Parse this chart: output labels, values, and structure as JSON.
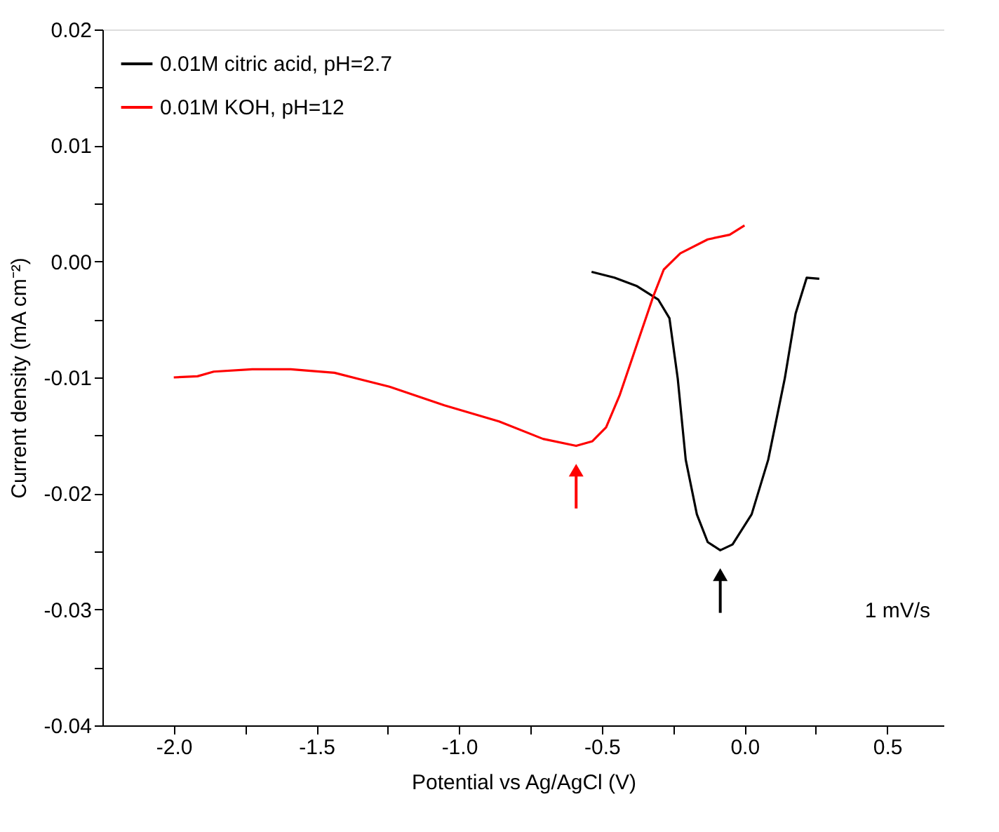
{
  "chart_data": {
    "type": "line",
    "xlabel": "Potential vs Ag/AgCl (V)",
    "ylabel": "Current density (mA cm⁻²)",
    "xlim": [
      -2.25,
      0.7
    ],
    "ylim": [
      -0.04,
      0.02
    ],
    "xticks": [
      {
        "value": -2.0,
        "label": "-2.0"
      },
      {
        "value": -1.75,
        "label": null
      },
      {
        "value": -1.5,
        "label": "-1.5"
      },
      {
        "value": -1.25,
        "label": null
      },
      {
        "value": -1.0,
        "label": "-1.0"
      },
      {
        "value": -0.75,
        "label": null
      },
      {
        "value": -0.5,
        "label": "-0.5"
      },
      {
        "value": -0.25,
        "label": null
      },
      {
        "value": 0.0,
        "label": "0.0"
      },
      {
        "value": 0.25,
        "label": null
      },
      {
        "value": 0.5,
        "label": "0.5"
      }
    ],
    "yticks": [
      {
        "value": -0.04,
        "label": "-0.04"
      },
      {
        "value": -0.035,
        "label": null
      },
      {
        "value": -0.03,
        "label": "-0.03"
      },
      {
        "value": -0.025,
        "label": null
      },
      {
        "value": -0.02,
        "label": "-0.02"
      },
      {
        "value": -0.015,
        "label": null
      },
      {
        "value": -0.01,
        "label": "-0.01"
      },
      {
        "value": -0.005,
        "label": null
      },
      {
        "value": 0.0,
        "label": "0.00"
      },
      {
        "value": 0.005,
        "label": null
      },
      {
        "value": 0.01,
        "label": "0.01"
      },
      {
        "value": 0.015,
        "label": null
      },
      {
        "value": 0.02,
        "label": "0.02"
      }
    ],
    "grid": false,
    "legend": "top left",
    "marker": "none",
    "line_style": "solid",
    "annotations": [
      "1 mV/s"
    ],
    "series": [
      {
        "name": "0.01M citric acid, pH=2.7",
        "color": "#000000",
        "x": [
          -0.536,
          -0.456,
          -0.379,
          -0.302,
          -0.263,
          -0.234,
          -0.206,
          -0.167,
          -0.129,
          -0.085,
          -0.042,
          0.025,
          0.083,
          0.141,
          0.179,
          0.218,
          0.262
        ],
        "values": [
          -0.0009,
          -0.0014,
          -0.0021,
          -0.0033,
          -0.0049,
          -0.0101,
          -0.0171,
          -0.0218,
          -0.0242,
          -0.0249,
          -0.0244,
          -0.0218,
          -0.0171,
          -0.0101,
          -0.0045,
          -0.0014,
          -0.0015
        ]
      },
      {
        "name": "0.01M KOH, pH=12",
        "color": "#ff0000",
        "x": [
          -2.0,
          -1.917,
          -1.86,
          -1.725,
          -1.59,
          -1.437,
          -1.244,
          -1.052,
          -0.86,
          -0.706,
          -0.59,
          -0.533,
          -0.485,
          -0.437,
          -0.379,
          -0.321,
          -0.283,
          -0.225,
          -0.129,
          -0.052,
          0.0
        ],
        "values": [
          -0.01,
          -0.0099,
          -0.0095,
          -0.0093,
          -0.0093,
          -0.0096,
          -0.0108,
          -0.0124,
          -0.0138,
          -0.0153,
          -0.0159,
          -0.0155,
          -0.0143,
          -0.0115,
          -0.0073,
          -0.0031,
          -0.0007,
          0.0007,
          0.0019,
          0.0023,
          0.0031
        ]
      }
    ]
  }
}
